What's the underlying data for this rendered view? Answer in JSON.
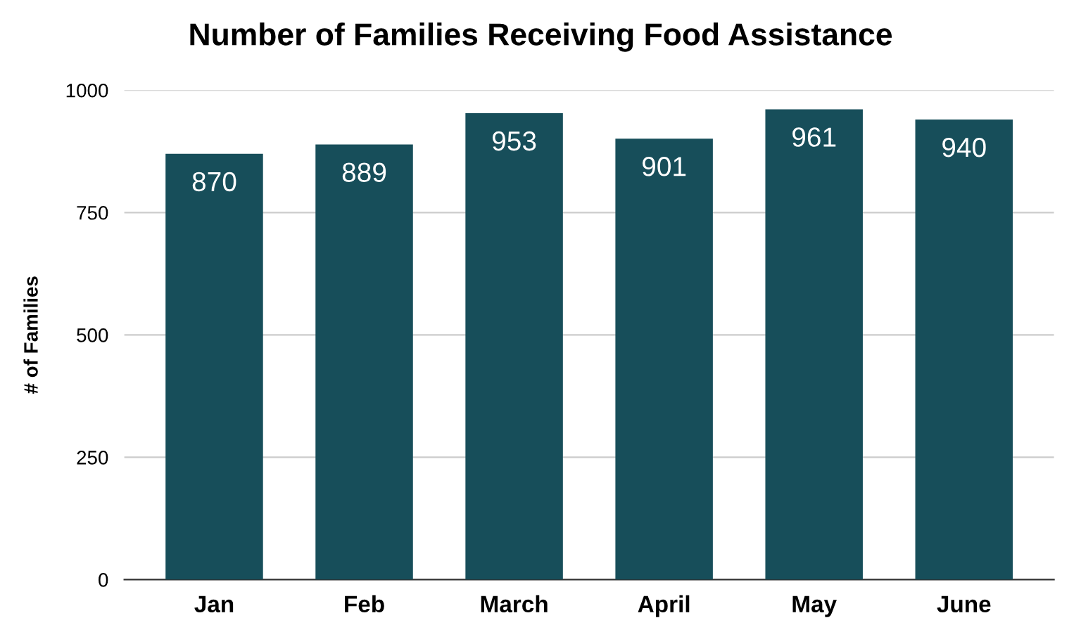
{
  "chart_data": {
    "type": "bar",
    "title": "Number of Families Receiving Food Assistance",
    "ylabel": "# of Families",
    "categories": [
      "Jan",
      "Feb",
      "March",
      "April",
      "May",
      "June"
    ],
    "values": [
      870,
      889,
      953,
      901,
      961,
      940
    ],
    "color": "#174e5a",
    "ylim": [
      0,
      1000
    ],
    "yticks": [
      0,
      250,
      500,
      750,
      1000
    ],
    "grid": "y",
    "data_labels": true,
    "legend": false
  }
}
